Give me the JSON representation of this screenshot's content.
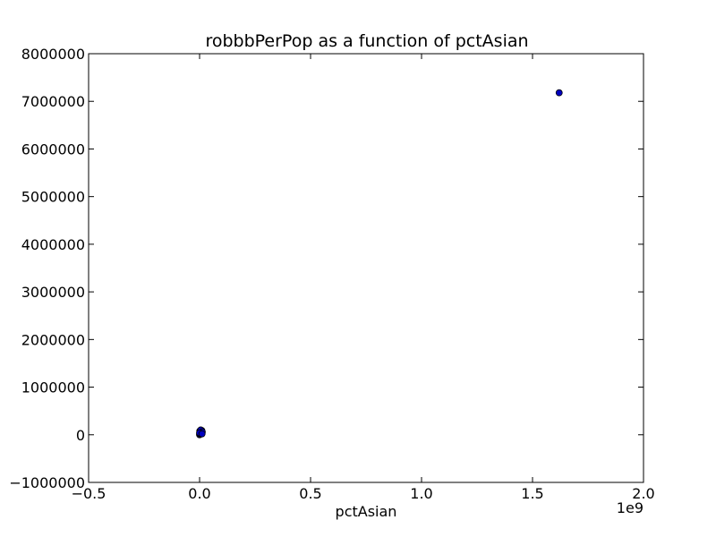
{
  "chart_data": {
    "type": "scatter",
    "title": "robbbPerPop as a function of pctAsian",
    "xlabel": "pctAsian",
    "ylabel": "",
    "x_offset_label": "1e9",
    "xlim": [
      -0.5,
      2.0
    ],
    "ylim": [
      -1000000,
      8000000
    ],
    "x_ticks": [
      -0.5,
      0.0,
      0.5,
      1.0,
      1.5,
      2.0
    ],
    "x_tick_labels": [
      "−0.5",
      "0.0",
      "0.5",
      "1.0",
      "1.5",
      "2.0"
    ],
    "y_ticks": [
      -1000000,
      0,
      1000000,
      2000000,
      3000000,
      4000000,
      5000000,
      6000000,
      7000000,
      8000000
    ],
    "y_tick_labels": [
      "−1000000",
      "0",
      "1000000",
      "2000000",
      "3000000",
      "4000000",
      "5000000",
      "6000000",
      "7000000",
      "8000000"
    ],
    "grid": false,
    "marker_color": "#0000bf",
    "marker_edge": "#000000",
    "points": [
      {
        "x": 0.0,
        "y": 0
      },
      {
        "x": 0.002,
        "y": 15000
      },
      {
        "x": 0.004,
        "y": 30000
      },
      {
        "x": 0.006,
        "y": 50000
      },
      {
        "x": 0.008,
        "y": 70000
      },
      {
        "x": 0.01,
        "y": 90000
      },
      {
        "x": 0.003,
        "y": 60000
      },
      {
        "x": 0.007,
        "y": 20000
      },
      {
        "x": 0.001,
        "y": 80000
      },
      {
        "x": 0.009,
        "y": 40000
      },
      {
        "x": 0.005,
        "y": 100000
      },
      {
        "x": 0.012,
        "y": 60000
      },
      {
        "x": 0.0,
        "y": 40000
      },
      {
        "x": 0.011,
        "y": 20000
      },
      {
        "x": 1.62,
        "y": 7180000
      }
    ]
  }
}
